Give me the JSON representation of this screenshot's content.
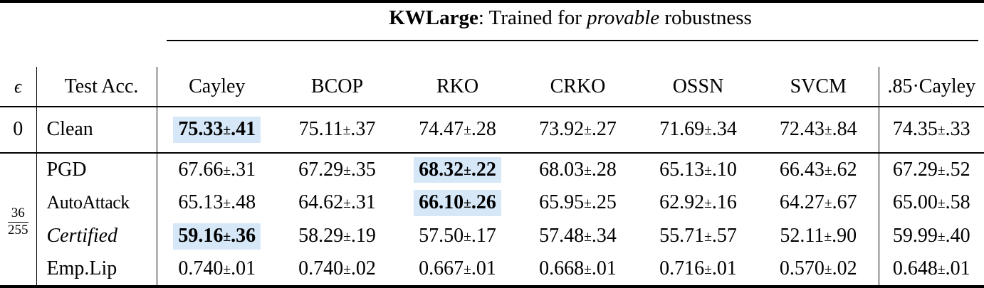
{
  "title": {
    "name": "KWLarge",
    "sep": ":",
    "pre": "Trained for",
    "em": "provable",
    "post": "robustness"
  },
  "colors": {
    "highlight": "#d6e8f8",
    "ink": "#000000"
  },
  "header": {
    "epsilon": "ϵ",
    "test_acc": "Test Acc.",
    "columns": [
      "Cayley",
      "BCOP",
      "RKO",
      "CRKO",
      "OSSN",
      "SVCM",
      ".85·Cayley"
    ]
  },
  "table": {
    "clean_epsilon": "0",
    "block": {
      "eps_num": "36",
      "eps_den": "255"
    },
    "rows": [
      {
        "id": "clean",
        "label": "Clean",
        "label_style": "",
        "highlight_col": 0,
        "cells": [
          "75.33±.41",
          "75.11±.37",
          "74.47±.28",
          "73.92±.27",
          "71.69±.34",
          "72.43±.84",
          "74.35±.33"
        ]
      },
      {
        "id": "pgd",
        "label": "PGD",
        "label_style": "",
        "highlight_col": 2,
        "cells": [
          "67.66±.31",
          "67.29±.35",
          "68.32±.22",
          "68.03±.28",
          "65.13±.10",
          "66.43±.62",
          "67.29±.52"
        ]
      },
      {
        "id": "autoattack",
        "label": "AutoAttack",
        "label_style": "small",
        "highlight_col": 2,
        "cells": [
          "65.13±.48",
          "64.62±.31",
          "66.10±.26",
          "65.95±.25",
          "62.92±.16",
          "64.27±.67",
          "65.00±.58"
        ]
      },
      {
        "id": "certified",
        "label": "Certified",
        "label_style": "italic",
        "highlight_col": 0,
        "cells": [
          "59.16±.36",
          "58.29±.19",
          "57.50±.17",
          "57.48±.34",
          "55.71±.57",
          "52.11±.90",
          "59.99±.40"
        ]
      },
      {
        "id": "emplip",
        "label": "Emp.Lip",
        "label_style": "",
        "highlight_col": null,
        "cells": [
          "0.740±.01",
          "0.740±.02",
          "0.667±.01",
          "0.668±.01",
          "0.716±.01",
          "0.570±.02",
          "0.648±.01"
        ]
      }
    ]
  }
}
